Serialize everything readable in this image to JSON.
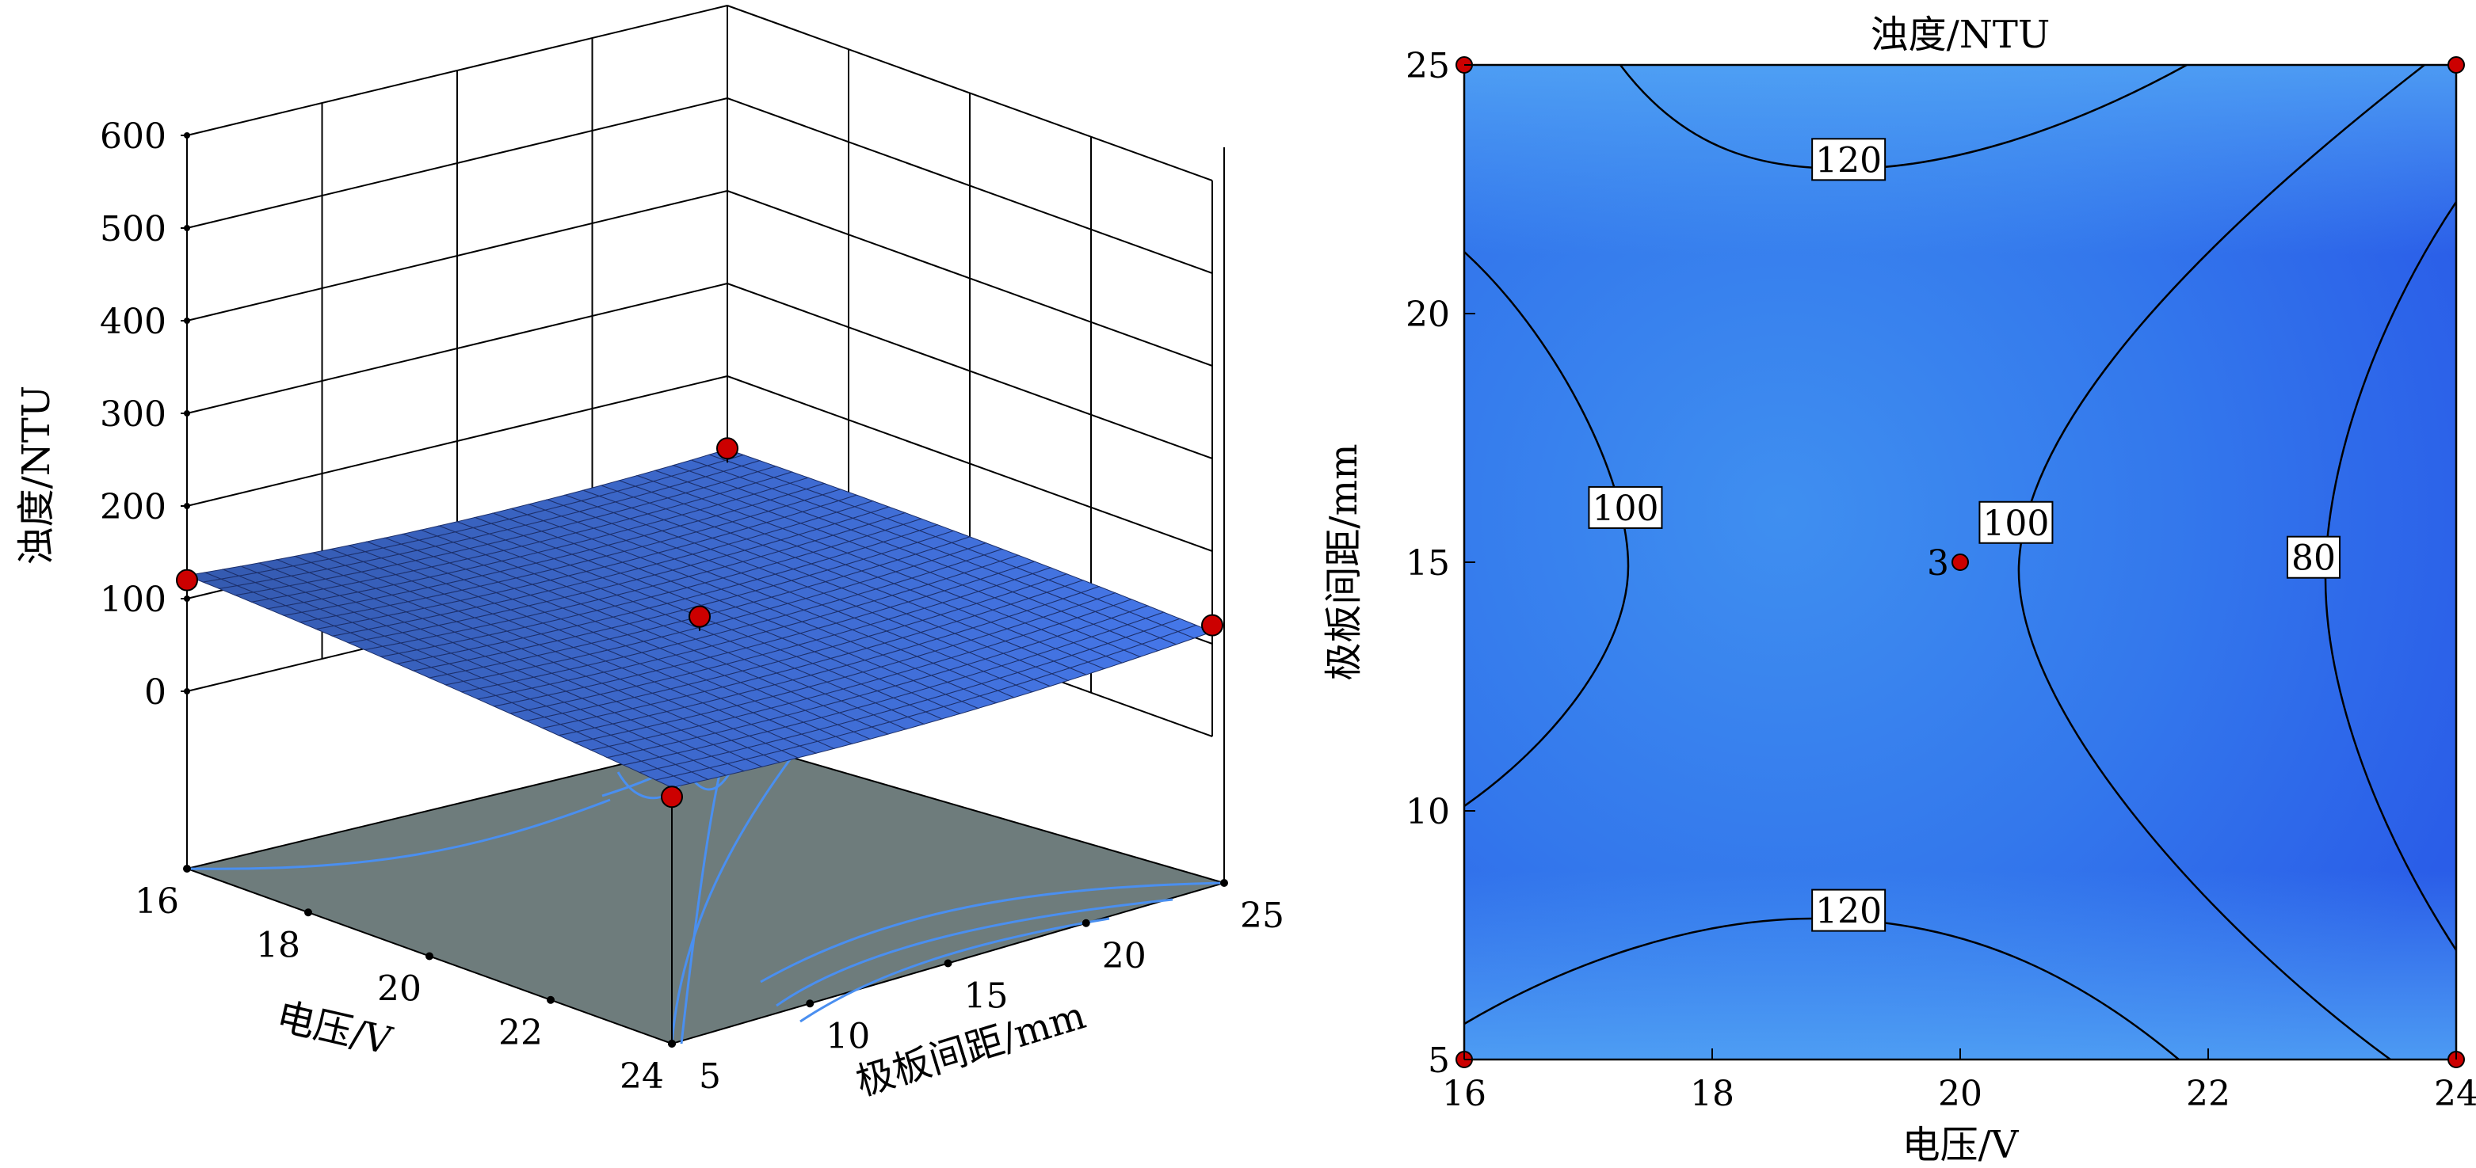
{
  "chart_data": [
    {
      "type": "surface",
      "title": "",
      "zlabel": "浊度/NTU",
      "xlabel": "电压/V",
      "ylabel": "极板间距/mm",
      "x_ticks": [
        "16",
        "18",
        "20",
        "22",
        "24"
      ],
      "y_ticks": [
        "5",
        "10",
        "15",
        "20",
        "25"
      ],
      "z_ticks": [
        "0",
        "100",
        "200",
        "300",
        "400",
        "500",
        "600"
      ],
      "xlim": [
        16,
        24
      ],
      "ylim": [
        5,
        25
      ],
      "zlim": [
        0,
        600
      ],
      "design_points": [
        {
          "voltage": 16,
          "spacing": 5,
          "turbidity": 120
        },
        {
          "voltage": 16,
          "spacing": 25,
          "turbidity": 122
        },
        {
          "voltage": 24,
          "spacing": 5,
          "turbidity": 75
        },
        {
          "voltage": 24,
          "spacing": 25,
          "turbidity": 120
        },
        {
          "voltage": 20,
          "spacing": 15,
          "turbidity": 105
        }
      ],
      "surface_color": "#3f6fe0",
      "floor_color": "#6e7c7c",
      "point_color": "#cc0000"
    },
    {
      "type": "contour",
      "title": "浊度/NTU",
      "xlabel": "电压/V",
      "ylabel": "极板间距/mm",
      "x_ticks": [
        "16",
        "18",
        "20",
        "22",
        "24"
      ],
      "y_ticks": [
        "5",
        "10",
        "15",
        "20",
        "25"
      ],
      "xlim": [
        16,
        24
      ],
      "ylim": [
        5,
        25
      ],
      "contour_labels": [
        {
          "value": "120",
          "voltage": 19.1,
          "spacing": 23.1
        },
        {
          "value": "120",
          "voltage": 19.1,
          "spacing": 8.0
        },
        {
          "value": "100",
          "voltage": 17.3,
          "spacing": 16.1
        },
        {
          "value": "100",
          "voltage": 20.45,
          "spacing": 15.8
        },
        {
          "value": "80",
          "voltage": 22.85,
          "spacing": 15.1
        }
      ],
      "center_point": {
        "voltage": 20,
        "spacing": 15,
        "replicates": "3"
      },
      "corner_points": [
        {
          "voltage": 16,
          "spacing": 5
        },
        {
          "voltage": 16,
          "spacing": 25
        },
        {
          "voltage": 24,
          "spacing": 5
        },
        {
          "voltage": 24,
          "spacing": 25
        }
      ],
      "fill_colors": {
        "light": "#4fa3f5",
        "dark": "#2c5ee8"
      },
      "point_color": "#cc0000"
    }
  ]
}
